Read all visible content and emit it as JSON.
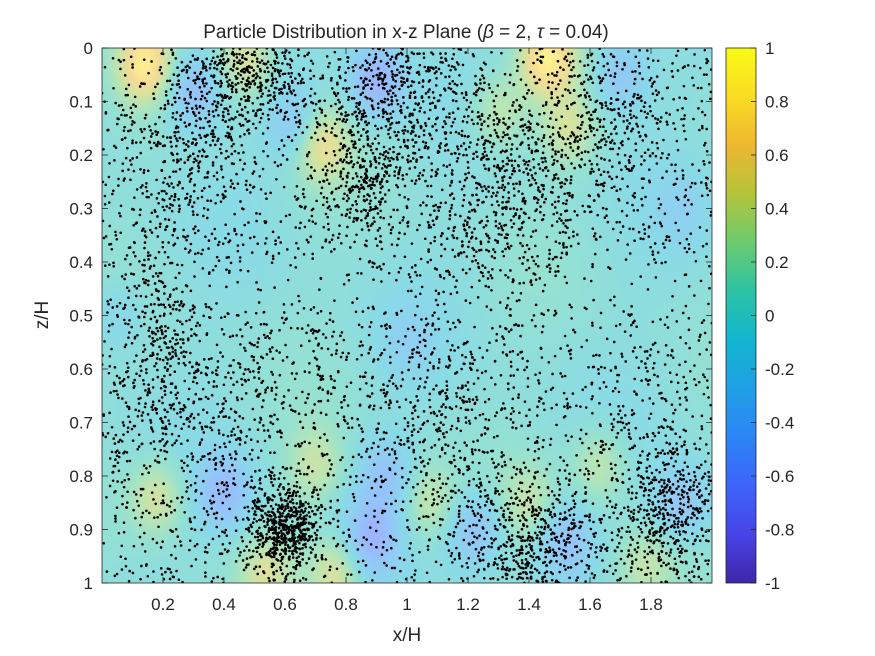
{
  "chart_data": {
    "type": "scatter",
    "title": "Particle Distribution in x-z Plane (β = 2, τ = 0.04)",
    "title_parts": {
      "prefix": "Particle Distribution in x-z Plane (",
      "beta_symbol": "β",
      "beta_text": " = 2, ",
      "tau_symbol": "τ",
      "tau_text": " = 0.04)"
    },
    "xlabel": "x/H",
    "ylabel": "z/H",
    "xlim": [
      0,
      2
    ],
    "ylim": [
      0,
      1
    ],
    "y_reversed": true,
    "x_ticks": [
      0.2,
      0.4,
      0.6,
      0.8,
      1,
      1.2,
      1.4,
      1.6,
      1.8
    ],
    "x_tick_labels": [
      "0.2",
      "0.4",
      "0.6",
      "0.8",
      "1",
      "1.2",
      "1.4",
      "1.6",
      "1.8"
    ],
    "y_ticks": [
      0,
      0.1,
      0.2,
      0.3,
      0.4,
      0.5,
      0.6,
      0.7,
      0.8,
      0.9,
      1
    ],
    "y_tick_labels": [
      "0",
      "0.1",
      "0.2",
      "0.3",
      "0.4",
      "0.5",
      "0.6",
      "0.7",
      "0.8",
      "0.9",
      "1"
    ],
    "background_field": {
      "type": "heatmap",
      "colormap": "parula",
      "clim": [
        -1,
        1
      ],
      "alpha": 0.5,
      "hotspots": [
        {
          "x": 0.14,
          "z": 0.03,
          "value": 0.75
        },
        {
          "x": 0.47,
          "z": 0.02,
          "value": 0.5
        },
        {
          "x": 0.72,
          "z": 0.18,
          "value": 0.55
        },
        {
          "x": 1.46,
          "z": 0.02,
          "value": 0.8
        },
        {
          "x": 1.3,
          "z": 0.12,
          "value": 0.35
        },
        {
          "x": 1.53,
          "z": 0.15,
          "value": 0.4
        },
        {
          "x": 0.3,
          "z": 0.08,
          "value": -0.5
        },
        {
          "x": 0.9,
          "z": 0.06,
          "value": -0.6
        },
        {
          "x": 0.63,
          "z": 0.14,
          "value": -0.4
        },
        {
          "x": 1.7,
          "z": 0.05,
          "value": -0.4
        },
        {
          "x": 0.18,
          "z": 0.84,
          "value": 0.45
        },
        {
          "x": 0.54,
          "z": 0.98,
          "value": 0.4
        },
        {
          "x": 0.77,
          "z": 0.98,
          "value": 0.5
        },
        {
          "x": 0.7,
          "z": 0.78,
          "value": 0.35
        },
        {
          "x": 1.07,
          "z": 0.85,
          "value": 0.35
        },
        {
          "x": 1.4,
          "z": 0.85,
          "value": 0.3
        },
        {
          "x": 1.63,
          "z": 0.78,
          "value": 0.35
        },
        {
          "x": 1.78,
          "z": 0.97,
          "value": 0.3
        },
        {
          "x": 0.4,
          "z": 0.83,
          "value": -0.5
        },
        {
          "x": 0.88,
          "z": 0.92,
          "value": -0.55
        },
        {
          "x": 0.93,
          "z": 0.8,
          "value": -0.4
        },
        {
          "x": 1.22,
          "z": 0.9,
          "value": -0.45
        },
        {
          "x": 1.52,
          "z": 0.92,
          "value": -0.45
        },
        {
          "x": 1.9,
          "z": 0.85,
          "value": -0.4
        },
        {
          "x": 0.05,
          "z": 0.5,
          "value": -0.2
        },
        {
          "x": 1.0,
          "z": 0.55,
          "value": -0.2
        },
        {
          "x": 1.9,
          "z": 0.3,
          "value": -0.2
        }
      ]
    },
    "particle_density": {
      "count": 7500,
      "seed": 11,
      "clusters": [
        {
          "x": 0.6,
          "z": 0.9,
          "rx": 0.06,
          "rz": 0.04,
          "weight": 3
        },
        {
          "x": 0.48,
          "z": 0.05,
          "rx": 0.1,
          "rz": 0.05,
          "weight": 2
        },
        {
          "x": 0.95,
          "z": 0.1,
          "rx": 0.12,
          "rz": 0.07,
          "weight": 2
        },
        {
          "x": 1.3,
          "z": 0.27,
          "rx": 0.14,
          "rz": 0.1,
          "weight": 2.5
        },
        {
          "x": 1.42,
          "z": 0.92,
          "rx": 0.1,
          "rz": 0.06,
          "weight": 2
        },
        {
          "x": 1.85,
          "z": 0.86,
          "rx": 0.1,
          "rz": 0.08,
          "weight": 2.5
        },
        {
          "x": 0.18,
          "z": 0.55,
          "rx": 0.08,
          "rz": 0.12,
          "weight": 1.5
        },
        {
          "x": 0.3,
          "z": 0.18,
          "rx": 0.12,
          "rz": 0.08,
          "weight": 1.5
        },
        {
          "x": 0.85,
          "z": 0.25,
          "rx": 0.08,
          "rz": 0.05,
          "weight": 1.3
        },
        {
          "x": 1.6,
          "z": 0.15,
          "rx": 0.15,
          "rz": 0.08,
          "weight": 1.5
        },
        {
          "x": 1.1,
          "z": 0.7,
          "rx": 0.15,
          "rz": 0.1,
          "weight": 1.5
        },
        {
          "x": 0.4,
          "z": 0.7,
          "rx": 0.15,
          "rz": 0.1,
          "weight": 1.3
        }
      ],
      "sparse_band": {
        "z": 0.45,
        "halfwidth": 0.08
      }
    },
    "colorbar": {
      "ticks": [
        1,
        0.8,
        0.6,
        0.4,
        0.2,
        0,
        -0.2,
        -0.4,
        -0.6,
        -0.8,
        -1
      ],
      "tick_labels": [
        "1",
        "0.8",
        "0.6",
        "0.4",
        "0.2",
        "0",
        "-0.2",
        "-0.4",
        "-0.6",
        "-0.8",
        "-1"
      ]
    },
    "colors": {
      "particles": "#000000",
      "axis": "#262626",
      "parula": [
        "#3e26a8",
        "#4744e7",
        "#3d64fa",
        "#2c85f6",
        "#1fa0e4",
        "#12b6cf",
        "#2cc3a4",
        "#6ccb70",
        "#b4c43b",
        "#eeb72f",
        "#fadc23",
        "#f9fb15"
      ]
    }
  }
}
